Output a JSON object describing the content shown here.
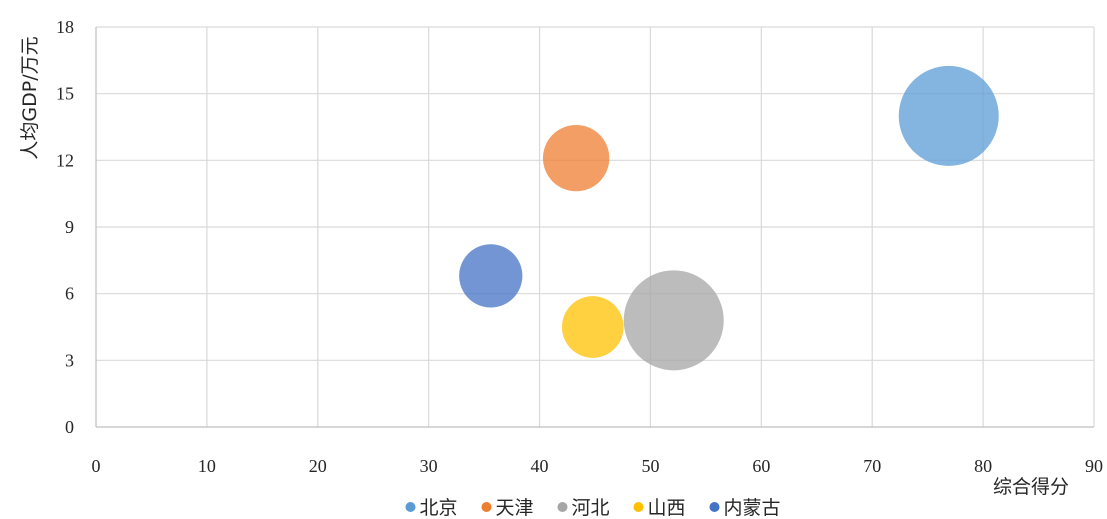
{
  "chart_data": {
    "type": "bubble",
    "title": "",
    "xlabel": "综合得分",
    "ylabel": "人均GDP/万元",
    "xlim": [
      0,
      90
    ],
    "ylim": [
      0,
      18
    ],
    "xticks": [
      0,
      10,
      20,
      30,
      40,
      50,
      60,
      70,
      80,
      90
    ],
    "yticks": [
      0,
      3,
      6,
      9,
      12,
      15,
      18
    ],
    "grid": true,
    "legend_position": "bottom",
    "series": [
      {
        "name": "北京",
        "x": 76.9,
        "y": 14.0,
        "size": 100,
        "color": "#5B9BD5"
      },
      {
        "name": "天津",
        "x": 43.3,
        "y": 12.1,
        "size": 44,
        "color": "#ED7D31"
      },
      {
        "name": "河北",
        "x": 52.1,
        "y": 4.8,
        "size": 100,
        "color": "#A5A5A5"
      },
      {
        "name": "山西",
        "x": 44.8,
        "y": 4.5,
        "size": 38,
        "color": "#FFC000"
      },
      {
        "name": "内蒙古",
        "x": 35.6,
        "y": 6.8,
        "size": 40,
        "color": "#4472C4"
      }
    ]
  }
}
